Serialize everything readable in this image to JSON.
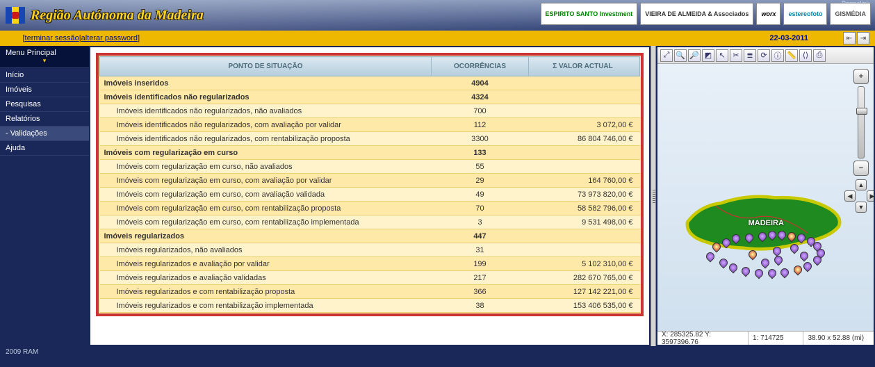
{
  "header": {
    "region_title": "Região Autónoma da Madeira",
    "top_right_label": "Permalink",
    "sponsors": [
      "ESPIRITO SANTO Investment",
      "VIEIRA DE ALMEIDA & Associados",
      "worx",
      "estereofoto",
      "GISMÉDIA"
    ]
  },
  "topbar": {
    "logout": "terminar sessão",
    "sep": " | ",
    "change_pw": "alterar password",
    "date": "22-03-2011"
  },
  "sidebar": {
    "title": "Menu Principal",
    "items": [
      "Início",
      "Imóveis",
      "Pesquisas",
      "Relatórios",
      "- Validações",
      "Ajuda"
    ]
  },
  "report": {
    "headers": [
      "PONTO DE SITUAÇÃO",
      "OCORRÊNCIAS",
      "Σ VALOR ACTUAL"
    ],
    "rows": [
      {
        "t": "bold",
        "label": "Imóveis inseridos",
        "occ": "4904",
        "val": ""
      },
      {
        "t": "bold",
        "label": "Imóveis identificados não regularizados",
        "occ": "4324",
        "val": ""
      },
      {
        "t": "sub",
        "label": "Imóveis identificados não regularizados, não avaliados",
        "occ": "700",
        "val": ""
      },
      {
        "t": "alt",
        "label": "Imóveis identificados não regularizados, com avaliação por validar",
        "occ": "112",
        "val": "3 072,00 €"
      },
      {
        "t": "sub",
        "label": "Imóveis identificados não regularizados, com rentabilização proposta",
        "occ": "3300",
        "val": "86 804 746,00 €"
      },
      {
        "t": "bold",
        "label": "Imóveis com regularização em curso",
        "occ": "133",
        "val": ""
      },
      {
        "t": "sub",
        "label": "Imóveis com regularização em curso, não avaliados",
        "occ": "55",
        "val": ""
      },
      {
        "t": "alt",
        "label": "Imóveis com regularização em curso, com avaliação por validar",
        "occ": "29",
        "val": "164 760,00 €"
      },
      {
        "t": "sub",
        "label": "Imóveis com regularização em curso, com avaliação validada",
        "occ": "49",
        "val": "73 973 820,00 €"
      },
      {
        "t": "alt",
        "label": "Imóveis com regularização em curso, com rentabilização proposta",
        "occ": "70",
        "val": "58 582 796,00 €"
      },
      {
        "t": "sub",
        "label": "Imóveis com regularização em curso, com rentabilização implementada",
        "occ": "3",
        "val": "9 531 498,00 €"
      },
      {
        "t": "bold",
        "label": "Imóveis regularizados",
        "occ": "447",
        "val": ""
      },
      {
        "t": "sub",
        "label": "Imóveis regularizados, não avaliados",
        "occ": "31",
        "val": ""
      },
      {
        "t": "alt",
        "label": "Imóveis regularizados e avaliação por validar",
        "occ": "199",
        "val": "5 102 310,00 €"
      },
      {
        "t": "sub",
        "label": "Imóveis regularizados e avaliação validadas",
        "occ": "217",
        "val": "282 670 765,00 €"
      },
      {
        "t": "alt",
        "label": "Imóveis regularizados e com rentabilização proposta",
        "occ": "366",
        "val": "127 142 221,00 €"
      },
      {
        "t": "sub",
        "label": "Imóveis regularizados e com rentabilização implementada",
        "occ": "38",
        "val": "153 406 535,00 €"
      }
    ]
  },
  "map": {
    "label": "MADEIRA",
    "status": {
      "coords": "X: 285325.82 Y: 3597396.76",
      "scale": "1: 714725",
      "extent": "38.90 x 52.88 (mi)"
    }
  },
  "footer": {
    "copyright": "2009 RAM"
  }
}
